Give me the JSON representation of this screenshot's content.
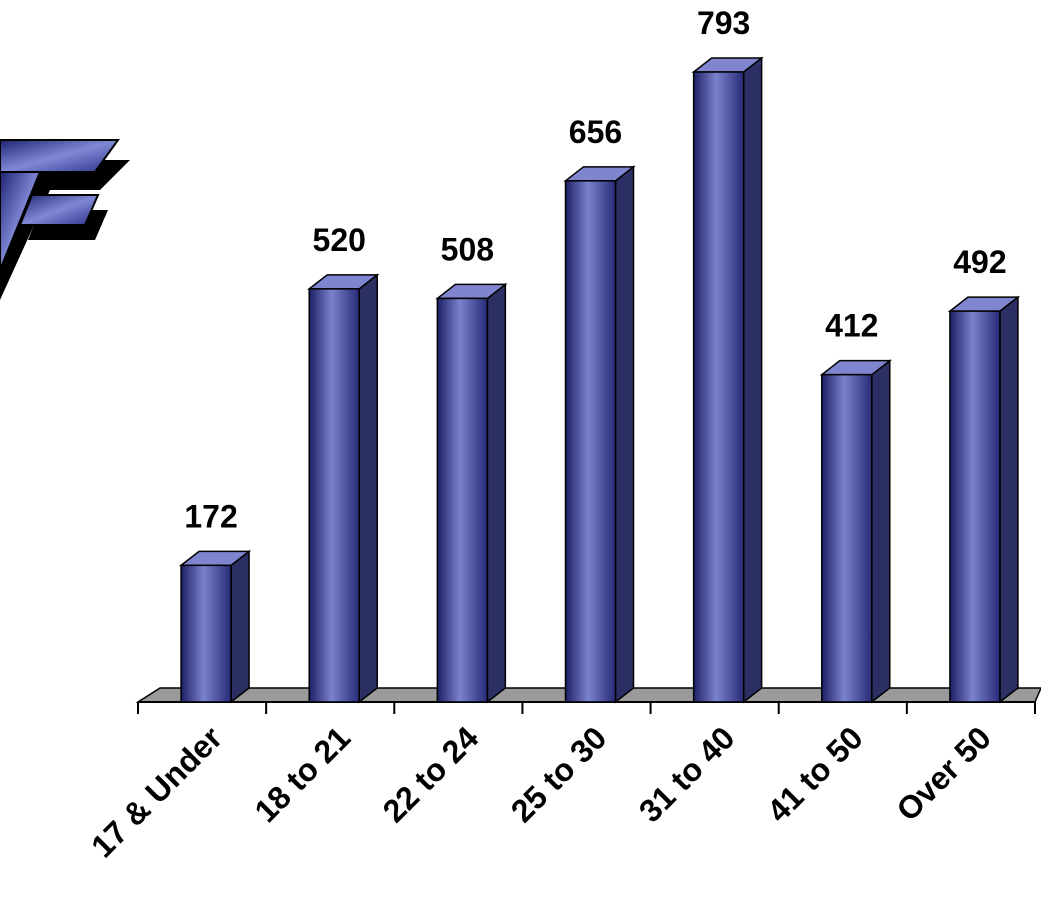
{
  "chart_data": {
    "type": "bar",
    "categories": [
      "17 & Under",
      "18 to 21",
      "22 to 24",
      "25 to 30",
      "31 to 40",
      "41 to 50",
      "Over 50"
    ],
    "values": [
      172,
      520,
      508,
      656,
      793,
      412,
      492
    ],
    "ylim": [
      0,
      793
    ],
    "grid": false,
    "legend": "none",
    "data_labels": true,
    "style": "3d-column"
  },
  "colors": {
    "bar_front": "#5a62b8",
    "bar_top": "#7f86cf",
    "bar_side": "#2b2f63",
    "floor": "#9a9a9a",
    "logo_front": "#3d4596",
    "logo_shadow": "#000000"
  },
  "logo": {
    "letter": "F"
  }
}
